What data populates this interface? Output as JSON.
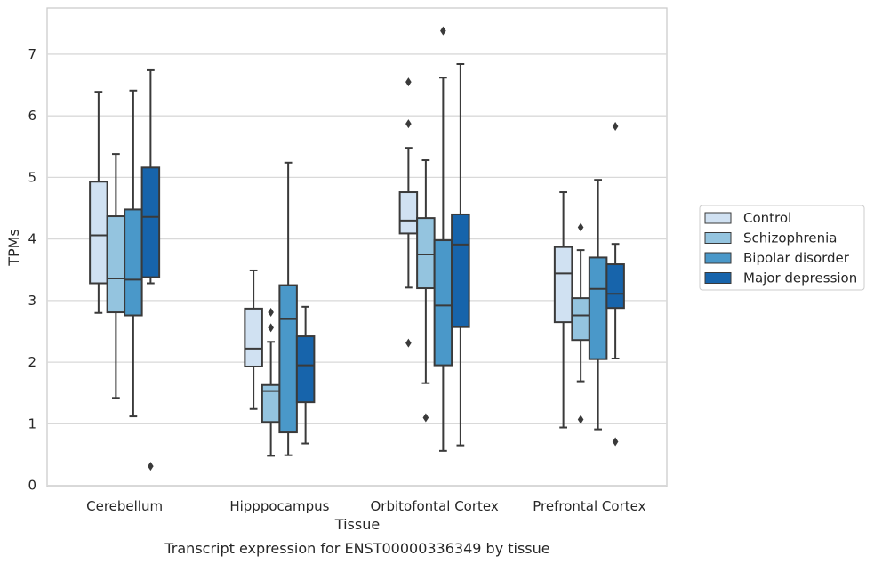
{
  "chart_data": {
    "type": "box",
    "xlabel": "Tissue",
    "ylabel": "TPMs",
    "caption": "Transcript expression for ENST00000336349 by tissue",
    "ylim": [
      -0.02,
      7.75
    ],
    "yticks": [
      0,
      1,
      2,
      3,
      4,
      5,
      6,
      7
    ],
    "grid": "horizontal",
    "legend_position": "right",
    "categories": [
      "Cerebellum",
      "Hipppocampus",
      "Orbitofontal Cortex",
      "Prefrontal Cortex"
    ],
    "series": [
      {
        "name": "Control",
        "color": "#d0e1f2",
        "boxes": [
          {
            "whisker_low": 2.8,
            "q1": 3.28,
            "median": 4.06,
            "q3": 4.93,
            "whisker_high": 6.39,
            "outliers": []
          },
          {
            "whisker_low": 1.24,
            "q1": 1.93,
            "median": 2.22,
            "q3": 2.87,
            "whisker_high": 3.49,
            "outliers": []
          },
          {
            "whisker_low": 3.21,
            "q1": 4.09,
            "median": 4.3,
            "q3": 4.76,
            "whisker_high": 5.48,
            "outliers": [
              5.87,
              6.55,
              2.31
            ]
          },
          {
            "whisker_low": 0.94,
            "q1": 2.65,
            "median": 3.44,
            "q3": 3.87,
            "whisker_high": 4.76,
            "outliers": []
          }
        ]
      },
      {
        "name": "Schizophrenia",
        "color": "#94c4df",
        "boxes": [
          {
            "whisker_low": 1.42,
            "q1": 2.81,
            "median": 3.36,
            "q3": 4.37,
            "whisker_high": 5.38,
            "outliers": []
          },
          {
            "whisker_low": 0.48,
            "q1": 1.03,
            "median": 1.53,
            "q3": 1.63,
            "whisker_high": 2.33,
            "outliers": [
              2.81,
              2.56
            ]
          },
          {
            "whisker_low": 1.66,
            "q1": 3.2,
            "median": 3.75,
            "q3": 4.34,
            "whisker_high": 5.28,
            "outliers": [
              1.1
            ]
          },
          {
            "whisker_low": 1.69,
            "q1": 2.36,
            "median": 2.76,
            "q3": 3.04,
            "whisker_high": 3.82,
            "outliers": [
              4.19,
              1.07
            ]
          }
        ]
      },
      {
        "name": "Bipolar disorder",
        "color": "#4a98c9",
        "boxes": [
          {
            "whisker_low": 1.12,
            "q1": 2.76,
            "median": 3.34,
            "q3": 4.48,
            "whisker_high": 6.41,
            "outliers": []
          },
          {
            "whisker_low": 0.49,
            "q1": 0.86,
            "median": 2.7,
            "q3": 3.25,
            "whisker_high": 5.24,
            "outliers": []
          },
          {
            "whisker_low": 0.56,
            "q1": 1.95,
            "median": 2.92,
            "q3": 3.98,
            "whisker_high": 6.62,
            "outliers": [
              7.38
            ]
          },
          {
            "whisker_low": 0.91,
            "q1": 2.05,
            "median": 3.19,
            "q3": 3.7,
            "whisker_high": 4.96,
            "outliers": []
          }
        ]
      },
      {
        "name": "Major depression",
        "color": "#1764ab",
        "boxes": [
          {
            "whisker_low": 3.28,
            "q1": 3.38,
            "median": 4.36,
            "q3": 5.16,
            "whisker_high": 6.74,
            "outliers": [
              0.31
            ]
          },
          {
            "whisker_low": 0.68,
            "q1": 1.35,
            "median": 1.95,
            "q3": 2.42,
            "whisker_high": 2.9,
            "outliers": []
          },
          {
            "whisker_low": 0.65,
            "q1": 2.57,
            "median": 3.91,
            "q3": 4.4,
            "whisker_high": 6.84,
            "outliers": []
          },
          {
            "whisker_low": 2.06,
            "q1": 2.88,
            "median": 3.11,
            "q3": 3.59,
            "whisker_high": 3.92,
            "outliers": [
              5.83,
              0.71
            ]
          }
        ]
      }
    ]
  }
}
